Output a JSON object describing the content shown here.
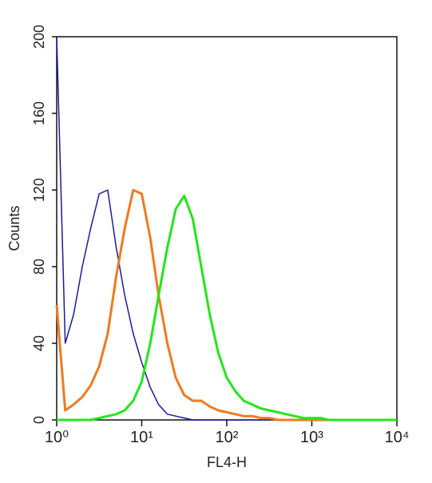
{
  "chart_data": {
    "type": "line",
    "x_label": "FL4-H",
    "y_label": "Counts",
    "x": [
      1,
      1.26,
      1.58,
      2,
      2.51,
      3.16,
      3.98,
      5.01,
      6.31,
      7.94,
      10,
      12.6,
      15.8,
      20,
      25.1,
      31.6,
      39.8,
      50.1,
      63.1,
      79.4,
      100,
      126,
      158,
      200,
      251,
      316,
      398,
      501,
      631,
      794,
      1000,
      1259,
      1585,
      1995,
      2512,
      3162,
      3981,
      5012,
      6310,
      7943,
      10000
    ],
    "series": [
      {
        "color": "#1a1a9e",
        "values": [
          200,
          40,
          55,
          80,
          100,
          118,
          120,
          90,
          65,
          45,
          30,
          17,
          8,
          3,
          2,
          1,
          0,
          0,
          0,
          0,
          0,
          0,
          0,
          0,
          0,
          0,
          0,
          0,
          0,
          0,
          0,
          0,
          0,
          0,
          0,
          0,
          0,
          0,
          0,
          0,
          0
        ]
      },
      {
        "color": "#f07a1e",
        "values": [
          60,
          5,
          8,
          12,
          18,
          28,
          45,
          75,
          100,
          120,
          118,
          95,
          65,
          40,
          22,
          13,
          10,
          10,
          7,
          5,
          4,
          3,
          2,
          2,
          1,
          1,
          0,
          0,
          0,
          0,
          0,
          0,
          0,
          0,
          0,
          0,
          0,
          0,
          0,
          0,
          0
        ]
      },
      {
        "color": "#22e61e",
        "values": [
          0,
          0,
          0,
          0,
          0,
          1,
          2,
          3,
          5,
          10,
          20,
          40,
          65,
          90,
          110,
          117,
          105,
          80,
          55,
          35,
          22,
          15,
          10,
          8,
          6,
          5,
          4,
          3,
          2,
          1,
          1,
          1,
          0,
          0,
          0,
          0,
          0,
          0,
          0,
          0,
          0
        ]
      }
    ],
    "xscale": "log",
    "xlim": [
      1,
      10000
    ],
    "xticks": [
      {
        "value": 1,
        "label": "10⁰"
      },
      {
        "value": 10,
        "label": "10¹"
      },
      {
        "value": 100,
        "label": "10²"
      },
      {
        "value": 1000,
        "label": "10³"
      },
      {
        "value": 10000,
        "label": "10⁴"
      }
    ],
    "ylim": [
      0,
      200
    ],
    "yticks": [
      0,
      40,
      80,
      120,
      160,
      200
    ]
  }
}
